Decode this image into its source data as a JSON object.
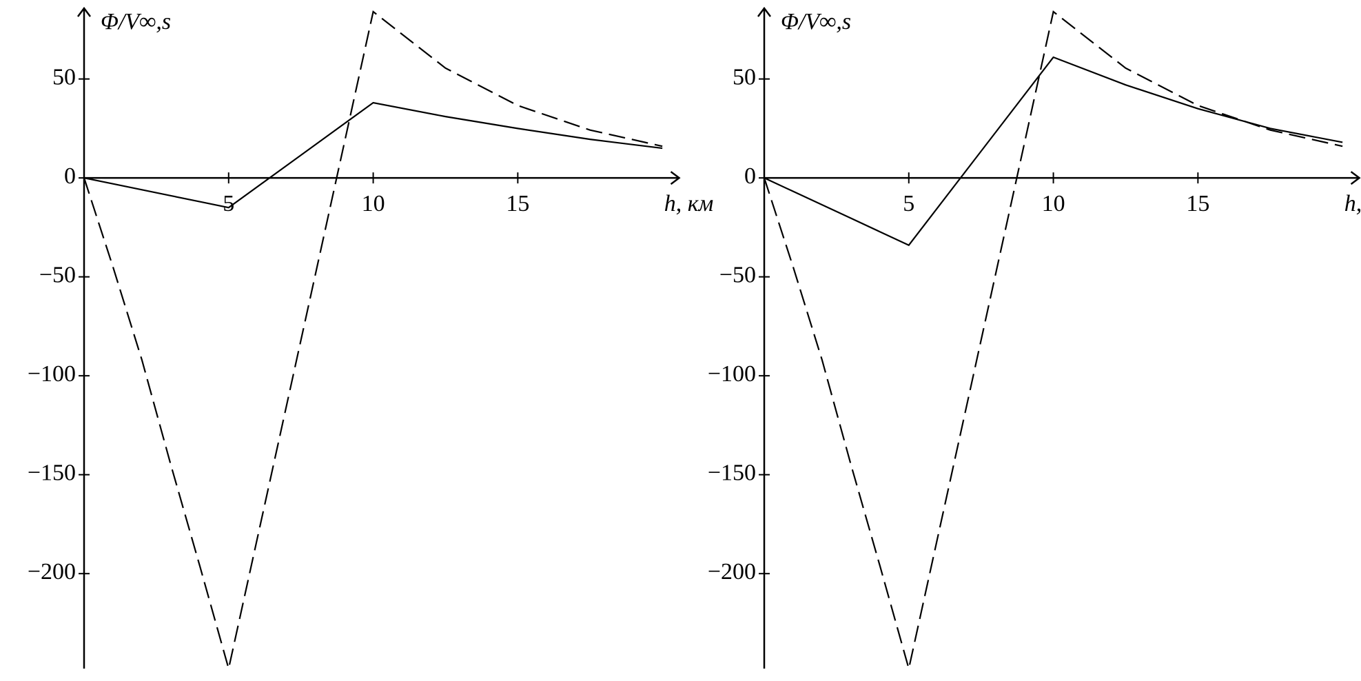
{
  "chart_data": [
    {
      "type": "line",
      "y_label": "Φ/V∞,s",
      "x_label": "h, км",
      "x": [
        0,
        1,
        2,
        3,
        4,
        5,
        7.5,
        10,
        12.5,
        15,
        17.5,
        20
      ],
      "series": [
        {
          "color": "#000000",
          "linestyle": "solid",
          "values": [
            0,
            -3,
            -6,
            -9,
            -12,
            -15,
            11.5,
            38,
            31,
            25,
            19.5,
            15
          ]
        },
        {
          "color": "#000000",
          "linestyle": "dashed",
          "values": [
            0,
            -45,
            -92,
            -145,
            -196,
            -248,
            -82,
            84,
            55.5,
            36.6,
            24.2,
            16
          ]
        }
      ],
      "xlim": [
        0,
        20.2
      ],
      "ylim": [
        -248,
        84
      ],
      "xticks": [
        5,
        10,
        15
      ],
      "yticks": [
        {
          "value": -200,
          "label": "−200"
        },
        {
          "value": -150,
          "label": "−150"
        },
        {
          "value": -100,
          "label": "−100"
        },
        {
          "value": -50,
          "label": "−50"
        },
        0,
        50
      ]
    },
    {
      "type": "line",
      "y_label": "Φ/V∞,s",
      "x_label": "h, км",
      "x": [
        0,
        1,
        2,
        3,
        4,
        5,
        7.5,
        10,
        12.5,
        15,
        17.5,
        20
      ],
      "series": [
        {
          "color": "#000000",
          "linestyle": "solid",
          "values": [
            0,
            -6.8,
            -13.6,
            -20.4,
            -27.2,
            -34,
            13.5,
            61,
            47,
            35,
            25,
            18
          ]
        },
        {
          "color": "#000000",
          "linestyle": "dashed",
          "values": [
            0,
            -45,
            -92,
            -145,
            -196,
            -248,
            -82,
            84,
            55.5,
            36.6,
            24.2,
            16
          ]
        }
      ],
      "xlim": [
        0,
        20.2
      ],
      "ylim": [
        -248,
        84
      ],
      "xticks": [
        5,
        10,
        15
      ],
      "yticks": [
        {
          "value": -200,
          "label": "−200"
        },
        {
          "value": -150,
          "label": "−150"
        },
        {
          "value": -100,
          "label": "−100"
        },
        {
          "value": -50,
          "label": "−50"
        },
        0,
        50
      ]
    }
  ]
}
